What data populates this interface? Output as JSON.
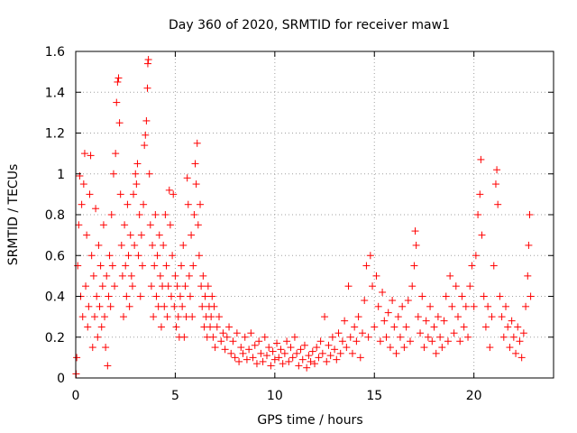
{
  "chart_data": {
    "type": "scatter",
    "title": "Day 360 of 2020, SRMTID for receiver maw1",
    "xlabel": "GPS time / hours",
    "ylabel": "SRMTID / TECUs",
    "xlim": [
      0,
      24
    ],
    "ylim": [
      0,
      1.6
    ],
    "xticks": [
      0,
      5,
      10,
      15,
      20
    ],
    "yticks": [
      0,
      0.2,
      0.4,
      0.6,
      0.8,
      1,
      1.2,
      1.4,
      1.6
    ],
    "xtick_labels": [
      "0",
      "5",
      "10",
      "15",
      "20"
    ],
    "ytick_labels": [
      "0",
      "0.2",
      "0.4",
      "0.6",
      "0.8",
      "1",
      "1.2",
      "1.4",
      "1.6"
    ],
    "grid": true,
    "marker": "plus",
    "color": "#ff0000",
    "series": [
      {
        "name": "SRMTID",
        "points": [
          [
            0.02,
            0.02
          ],
          [
            0.05,
            0.1
          ],
          [
            0.1,
            0.55
          ],
          [
            0.15,
            0.75
          ],
          [
            0.2,
            0.99
          ],
          [
            0.25,
            0.4
          ],
          [
            0.3,
            0.85
          ],
          [
            0.35,
            0.3
          ],
          [
            0.4,
            0.95
          ],
          [
            0.45,
            1.1
          ],
          [
            0.5,
            0.45
          ],
          [
            0.55,
            0.7
          ],
          [
            0.6,
            0.25
          ],
          [
            0.65,
            0.35
          ],
          [
            0.7,
            0.9
          ],
          [
            0.75,
            1.09
          ],
          [
            0.8,
            0.6
          ],
          [
            0.85,
            0.15
          ],
          [
            0.9,
            0.5
          ],
          [
            0.95,
            0.3
          ],
          [
            1.0,
            0.83
          ],
          [
            1.05,
            0.4
          ],
          [
            1.1,
            0.2
          ],
          [
            1.15,
            0.65
          ],
          [
            1.2,
            0.35
          ],
          [
            1.25,
            0.55
          ],
          [
            1.3,
            0.25
          ],
          [
            1.35,
            0.45
          ],
          [
            1.4,
            0.75
          ],
          [
            1.45,
            0.3
          ],
          [
            1.5,
            0.15
          ],
          [
            1.55,
            0.5
          ],
          [
            1.6,
            0.06
          ],
          [
            1.65,
            0.4
          ],
          [
            1.7,
            0.6
          ],
          [
            1.75,
            0.35
          ],
          [
            1.8,
            0.8
          ],
          [
            1.85,
            0.55
          ],
          [
            1.9,
            1.0
          ],
          [
            1.95,
            0.45
          ],
          [
            2.0,
            1.1
          ],
          [
            2.05,
            1.35
          ],
          [
            2.1,
            1.45
          ],
          [
            2.15,
            1.47
          ],
          [
            2.2,
            1.25
          ],
          [
            2.25,
            0.9
          ],
          [
            2.3,
            0.65
          ],
          [
            2.35,
            0.5
          ],
          [
            2.4,
            0.3
          ],
          [
            2.45,
            0.75
          ],
          [
            2.5,
            0.55
          ],
          [
            2.55,
            0.4
          ],
          [
            2.6,
            0.85
          ],
          [
            2.65,
            0.6
          ],
          [
            2.7,
            0.35
          ],
          [
            2.75,
            0.7
          ],
          [
            2.8,
            0.5
          ],
          [
            2.85,
            0.45
          ],
          [
            2.9,
            0.9
          ],
          [
            2.95,
            0.65
          ],
          [
            3.0,
            1.0
          ],
          [
            3.05,
            0.95
          ],
          [
            3.1,
            1.05
          ],
          [
            3.15,
            0.6
          ],
          [
            3.2,
            0.8
          ],
          [
            3.25,
            0.4
          ],
          [
            3.3,
            0.7
          ],
          [
            3.35,
            0.55
          ],
          [
            3.4,
            0.85
          ],
          [
            3.45,
            1.14
          ],
          [
            3.5,
            1.19
          ],
          [
            3.55,
            1.26
          ],
          [
            3.6,
            1.42
          ],
          [
            3.62,
            1.54
          ],
          [
            3.65,
            1.56
          ],
          [
            3.7,
            1.0
          ],
          [
            3.75,
            0.75
          ],
          [
            3.8,
            0.45
          ],
          [
            3.85,
            0.65
          ],
          [
            3.9,
            0.3
          ],
          [
            3.95,
            0.55
          ],
          [
            4.0,
            0.8
          ],
          [
            4.05,
            0.4
          ],
          [
            4.1,
            0.6
          ],
          [
            4.15,
            0.35
          ],
          [
            4.2,
            0.7
          ],
          [
            4.25,
            0.5
          ],
          [
            4.3,
            0.25
          ],
          [
            4.35,
            0.45
          ],
          [
            4.4,
            0.65
          ],
          [
            4.45,
            0.35
          ],
          [
            4.5,
            0.8
          ],
          [
            4.55,
            0.55
          ],
          [
            4.6,
            0.3
          ],
          [
            4.65,
            0.45
          ],
          [
            4.7,
            0.92
          ],
          [
            4.75,
            0.75
          ],
          [
            4.8,
            0.4
          ],
          [
            4.85,
            0.6
          ],
          [
            4.9,
            0.9
          ],
          [
            4.95,
            0.35
          ],
          [
            5.0,
            0.5
          ],
          [
            5.05,
            0.25
          ],
          [
            5.1,
            0.45
          ],
          [
            5.15,
            0.3
          ],
          [
            5.2,
            0.2
          ],
          [
            5.25,
            0.4
          ],
          [
            5.3,
            0.55
          ],
          [
            5.35,
            0.35
          ],
          [
            5.4,
            0.65
          ],
          [
            5.45,
            0.2
          ],
          [
            5.5,
            0.45
          ],
          [
            5.55,
            0.3
          ],
          [
            5.6,
            0.98
          ],
          [
            5.65,
            0.85
          ],
          [
            5.7,
            0.5
          ],
          [
            5.75,
            0.4
          ],
          [
            5.8,
            0.7
          ],
          [
            5.85,
            0.3
          ],
          [
            5.9,
            0.55
          ],
          [
            5.95,
            0.8
          ],
          [
            6.0,
            1.05
          ],
          [
            6.05,
            0.95
          ],
          [
            6.1,
            1.15
          ],
          [
            6.15,
            0.75
          ],
          [
            6.2,
            0.6
          ],
          [
            6.25,
            0.85
          ],
          [
            6.3,
            0.45
          ],
          [
            6.35,
            0.35
          ],
          [
            6.4,
            0.5
          ],
          [
            6.45,
            0.25
          ],
          [
            6.5,
            0.4
          ],
          [
            6.55,
            0.3
          ],
          [
            6.6,
            0.2
          ],
          [
            6.65,
            0.45
          ],
          [
            6.7,
            0.35
          ],
          [
            6.75,
            0.25
          ],
          [
            6.8,
            0.3
          ],
          [
            6.85,
            0.4
          ],
          [
            6.9,
            0.2
          ],
          [
            6.95,
            0.35
          ],
          [
            7.0,
            0.15
          ],
          [
            7.1,
            0.25
          ],
          [
            7.2,
            0.3
          ],
          [
            7.3,
            0.18
          ],
          [
            7.4,
            0.22
          ],
          [
            7.5,
            0.14
          ],
          [
            7.6,
            0.2
          ],
          [
            7.7,
            0.25
          ],
          [
            7.8,
            0.12
          ],
          [
            7.9,
            0.18
          ],
          [
            8.0,
            0.1
          ],
          [
            8.1,
            0.22
          ],
          [
            8.2,
            0.08
          ],
          [
            8.3,
            0.15
          ],
          [
            8.4,
            0.12
          ],
          [
            8.5,
            0.2
          ],
          [
            8.6,
            0.09
          ],
          [
            8.7,
            0.14
          ],
          [
            8.8,
            0.22
          ],
          [
            8.9,
            0.1
          ],
          [
            9.0,
            0.16
          ],
          [
            9.1,
            0.07
          ],
          [
            9.2,
            0.18
          ],
          [
            9.3,
            0.12
          ],
          [
            9.4,
            0.08
          ],
          [
            9.5,
            0.2
          ],
          [
            9.6,
            0.11
          ],
          [
            9.7,
            0.15
          ],
          [
            9.8,
            0.06
          ],
          [
            9.9,
            0.13
          ],
          [
            10.0,
            0.09
          ],
          [
            10.1,
            0.17
          ],
          [
            10.2,
            0.1
          ],
          [
            10.3,
            0.14
          ],
          [
            10.4,
            0.07
          ],
          [
            10.5,
            0.12
          ],
          [
            10.6,
            0.18
          ],
          [
            10.7,
            0.08
          ],
          [
            10.8,
            0.15
          ],
          [
            10.9,
            0.1
          ],
          [
            11.0,
            0.2
          ],
          [
            11.1,
            0.12
          ],
          [
            11.2,
            0.06
          ],
          [
            11.3,
            0.14
          ],
          [
            11.4,
            0.09
          ],
          [
            11.5,
            0.16
          ],
          [
            11.6,
            0.05
          ],
          [
            11.7,
            0.11
          ],
          [
            11.8,
            0.08
          ],
          [
            11.9,
            0.13
          ],
          [
            12.0,
            0.07
          ],
          [
            12.1,
            0.15
          ],
          [
            12.2,
            0.1
          ],
          [
            12.3,
            0.18
          ],
          [
            12.4,
            0.12
          ],
          [
            12.5,
            0.3
          ],
          [
            12.6,
            0.08
          ],
          [
            12.7,
            0.16
          ],
          [
            12.8,
            0.11
          ],
          [
            12.9,
            0.2
          ],
          [
            13.0,
            0.14
          ],
          [
            13.1,
            0.09
          ],
          [
            13.2,
            0.22
          ],
          [
            13.3,
            0.12
          ],
          [
            13.4,
            0.18
          ],
          [
            13.5,
            0.28
          ],
          [
            13.6,
            0.15
          ],
          [
            13.7,
            0.45
          ],
          [
            13.8,
            0.2
          ],
          [
            13.9,
            0.12
          ],
          [
            14.0,
            0.25
          ],
          [
            14.1,
            0.18
          ],
          [
            14.2,
            0.3
          ],
          [
            14.3,
            0.1
          ],
          [
            14.4,
            0.22
          ],
          [
            14.5,
            0.38
          ],
          [
            14.6,
            0.55
          ],
          [
            14.7,
            0.2
          ],
          [
            14.8,
            0.6
          ],
          [
            14.9,
            0.45
          ],
          [
            15.0,
            0.25
          ],
          [
            15.1,
            0.5
          ],
          [
            15.2,
            0.35
          ],
          [
            15.3,
            0.18
          ],
          [
            15.4,
            0.42
          ],
          [
            15.5,
            0.28
          ],
          [
            15.6,
            0.2
          ],
          [
            15.7,
            0.32
          ],
          [
            15.8,
            0.15
          ],
          [
            15.9,
            0.38
          ],
          [
            16.0,
            0.25
          ],
          [
            16.1,
            0.12
          ],
          [
            16.2,
            0.3
          ],
          [
            16.3,
            0.2
          ],
          [
            16.4,
            0.35
          ],
          [
            16.5,
            0.15
          ],
          [
            16.6,
            0.25
          ],
          [
            16.7,
            0.38
          ],
          [
            16.8,
            0.18
          ],
          [
            16.9,
            0.45
          ],
          [
            17.0,
            0.55
          ],
          [
            17.05,
            0.72
          ],
          [
            17.1,
            0.65
          ],
          [
            17.2,
            0.3
          ],
          [
            17.3,
            0.22
          ],
          [
            17.4,
            0.4
          ],
          [
            17.5,
            0.15
          ],
          [
            17.6,
            0.28
          ],
          [
            17.7,
            0.2
          ],
          [
            17.8,
            0.35
          ],
          [
            17.9,
            0.18
          ],
          [
            18.0,
            0.25
          ],
          [
            18.1,
            0.12
          ],
          [
            18.2,
            0.3
          ],
          [
            18.3,
            0.2
          ],
          [
            18.4,
            0.15
          ],
          [
            18.5,
            0.28
          ],
          [
            18.6,
            0.4
          ],
          [
            18.7,
            0.18
          ],
          [
            18.8,
            0.5
          ],
          [
            18.9,
            0.35
          ],
          [
            19.0,
            0.22
          ],
          [
            19.1,
            0.45
          ],
          [
            19.2,
            0.3
          ],
          [
            19.3,
            0.18
          ],
          [
            19.4,
            0.4
          ],
          [
            19.5,
            0.25
          ],
          [
            19.6,
            0.35
          ],
          [
            19.7,
            0.2
          ],
          [
            19.8,
            0.45
          ],
          [
            19.9,
            0.55
          ],
          [
            20.0,
            0.35
          ],
          [
            20.1,
            0.6
          ],
          [
            20.2,
            0.8
          ],
          [
            20.3,
            0.9
          ],
          [
            20.35,
            1.07
          ],
          [
            20.4,
            0.7
          ],
          [
            20.5,
            0.4
          ],
          [
            20.6,
            0.25
          ],
          [
            20.7,
            0.35
          ],
          [
            20.8,
            0.15
          ],
          [
            20.9,
            0.3
          ],
          [
            21.0,
            0.55
          ],
          [
            21.1,
            0.95
          ],
          [
            21.15,
            1.02
          ],
          [
            21.2,
            0.85
          ],
          [
            21.3,
            0.4
          ],
          [
            21.4,
            0.3
          ],
          [
            21.5,
            0.2
          ],
          [
            21.6,
            0.35
          ],
          [
            21.7,
            0.25
          ],
          [
            21.8,
            0.15
          ],
          [
            21.9,
            0.28
          ],
          [
            22.0,
            0.2
          ],
          [
            22.1,
            0.12
          ],
          [
            22.2,
            0.25
          ],
          [
            22.3,
            0.18
          ],
          [
            22.4,
            0.1
          ],
          [
            22.5,
            0.22
          ],
          [
            22.6,
            0.35
          ],
          [
            22.7,
            0.5
          ],
          [
            22.75,
            0.65
          ],
          [
            22.8,
            0.8
          ],
          [
            22.85,
            0.4
          ]
        ]
      }
    ]
  }
}
